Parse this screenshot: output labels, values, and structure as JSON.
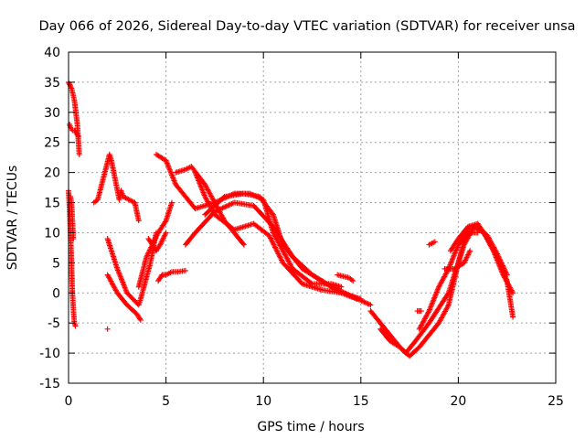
{
  "chart_data": {
    "type": "scatter",
    "title": "Day 066 of 2026, Sidereal Day-to-day VTEC variation (SDTVAR) for receiver unsa",
    "xlabel": "GPS time / hours",
    "ylabel": "SDTVAR / TECUs",
    "xlim": [
      0,
      25
    ],
    "ylim": [
      -15,
      40
    ],
    "xticks": [
      "0",
      "5",
      "10",
      "15",
      "20",
      "25"
    ],
    "yticks": [
      "-15",
      "-10",
      "-5",
      "0",
      "5",
      "10",
      "15",
      "20",
      "25",
      "30",
      "35",
      "40"
    ],
    "grid": true,
    "marker": "+",
    "color": "#ff0000",
    "series": [
      {
        "name": "t1",
        "x": [
          0.0,
          0.15,
          0.3,
          0.45,
          0.55
        ],
        "y": [
          35,
          34,
          32,
          28,
          23
        ]
      },
      {
        "name": "t2",
        "x": [
          0.0,
          0.05,
          0.1,
          0.15,
          0.2,
          0.25,
          0.3,
          0.35
        ],
        "y": [
          17,
          14,
          10,
          5,
          0,
          -3,
          -5,
          -5.5
        ]
      },
      {
        "name": "t3",
        "x": [
          0.05,
          0.1,
          0.2,
          0.3,
          0.4,
          0.5
        ],
        "y": [
          28,
          27.5,
          27,
          27,
          26.5,
          26
        ]
      },
      {
        "name": "t4",
        "x": [
          0.1,
          0.15,
          0.2,
          0.25
        ],
        "y": [
          16,
          15,
          12,
          9
        ]
      },
      {
        "name": "t5",
        "x": [
          1.3,
          1.5,
          2.1,
          2.2,
          2.6,
          2.7,
          2.8,
          3.4,
          3.6
        ],
        "y": [
          15,
          15.5,
          23,
          22,
          15.5,
          17,
          16,
          15,
          12
        ]
      },
      {
        "name": "t6",
        "x": [
          2.0
        ],
        "y": [
          -6
        ]
      },
      {
        "name": "t7",
        "x": [
          2.0,
          2.5,
          3.0,
          3.6,
          3.7,
          4.2,
          4.5
        ],
        "y": [
          9,
          4,
          0,
          -2,
          -1,
          5,
          10
        ]
      },
      {
        "name": "t8",
        "x": [
          2.0,
          2.5,
          3.0,
          3.5,
          3.7
        ],
        "y": [
          3,
          0,
          -2,
          -3.5,
          -4.5
        ]
      },
      {
        "name": "t9",
        "x": [
          3.6,
          3.8,
          4.0,
          4.3,
          4.6,
          5.0,
          5.3
        ],
        "y": [
          1,
          3.5,
          6,
          8,
          10,
          12,
          15
        ]
      },
      {
        "name": "t10",
        "x": [
          4.1,
          4.3,
          4.5,
          4.7,
          5.0
        ],
        "y": [
          9,
          8,
          7,
          8,
          10
        ]
      },
      {
        "name": "t11",
        "x": [
          4.6,
          4.8,
          5.0,
          5.3,
          5.6,
          6.0
        ],
        "y": [
          2,
          3,
          3,
          3.5,
          3.5,
          3.7
        ]
      },
      {
        "name": "t12",
        "x": [
          4.5,
          5.0,
          5.5,
          6.5,
          7.5,
          8.5,
          9.3,
          10.0,
          10.5,
          11.5,
          12.5,
          13.5,
          14.0
        ],
        "y": [
          23,
          22,
          18,
          14,
          15,
          16.5,
          16.5,
          15.5,
          10,
          4,
          1.5,
          1.5,
          1
        ]
      },
      {
        "name": "t13",
        "x": [
          5.5,
          6.0,
          6.3,
          7.0,
          7.5,
          8.0,
          8.5,
          9.0
        ],
        "y": [
          20,
          20.5,
          21,
          18,
          15,
          12,
          10,
          8
        ]
      },
      {
        "name": "t14",
        "x": [
          6.5,
          7.0,
          7.5,
          8.5,
          9.5,
          10.3,
          11.0,
          12.0,
          13.0,
          14.0,
          15.0
        ],
        "y": [
          20,
          16,
          13,
          10.5,
          11.5,
          9.5,
          5,
          1.5,
          0.5,
          0,
          -1
        ]
      },
      {
        "name": "t15",
        "x": [
          6.0,
          6.5,
          7.5,
          8.5,
          9.5,
          10.5,
          11.5,
          12.5,
          13.5,
          14.5,
          15.5
        ],
        "y": [
          8,
          10,
          13.5,
          15,
          14.5,
          11,
          6,
          3,
          1,
          -0.5,
          -2
        ]
      },
      {
        "name": "t16",
        "x": [
          7.0,
          8.0,
          9.0,
          9.8,
          10.5,
          11.0,
          12.0,
          13.0,
          14.0,
          14.8
        ],
        "y": [
          13,
          16,
          16.5,
          16,
          13,
          8,
          4,
          2,
          0,
          -1
        ]
      },
      {
        "name": "t17",
        "x": [
          13.8,
          14.4,
          14.6
        ],
        "y": [
          3,
          2.5,
          2
        ]
      },
      {
        "name": "t18",
        "x": [
          15.5,
          16.0,
          16.5,
          17.0,
          17.5,
          18.0,
          18.5,
          19.0,
          19.5,
          20.0,
          20.5,
          21.0,
          21.5,
          22.0,
          22.5,
          22.8
        ],
        "y": [
          -3,
          -5,
          -7,
          -9,
          -10.5,
          -9,
          -7,
          -5,
          -2,
          5,
          11,
          11.5,
          9,
          6,
          2,
          -4
        ]
      },
      {
        "name": "t19",
        "x": [
          16.0,
          16.5,
          17.0,
          17.3,
          17.8,
          18.5,
          19.5,
          20.3,
          20.8,
          21.3,
          21.8,
          22.3,
          22.8
        ],
        "y": [
          -6,
          -8,
          -9,
          -10,
          -8,
          -5,
          0,
          8,
          11,
          10,
          7,
          3,
          0
        ]
      },
      {
        "name": "t20",
        "x": [
          18.0,
          18.5,
          19.0,
          19.5,
          20.0,
          20.5,
          21.0
        ],
        "y": [
          -6,
          -3,
          1,
          4,
          8,
          10,
          10
        ]
      },
      {
        "name": "t21",
        "x": [
          19.3,
          19.8,
          20.3,
          20.6
        ],
        "y": [
          4,
          4,
          5,
          7
        ]
      },
      {
        "name": "t22",
        "x": [
          19.6,
          20.0,
          20.5,
          21.0,
          21.5,
          22.0,
          22.5
        ],
        "y": [
          7,
          9,
          11,
          11,
          9.5,
          6.5,
          3
        ]
      },
      {
        "name": "t23",
        "x": [
          18.5,
          18.8
        ],
        "y": [
          8,
          8.5
        ]
      },
      {
        "name": "t24",
        "x": [
          17.9,
          18.1
        ],
        "y": [
          -3,
          -3
        ]
      }
    ]
  }
}
